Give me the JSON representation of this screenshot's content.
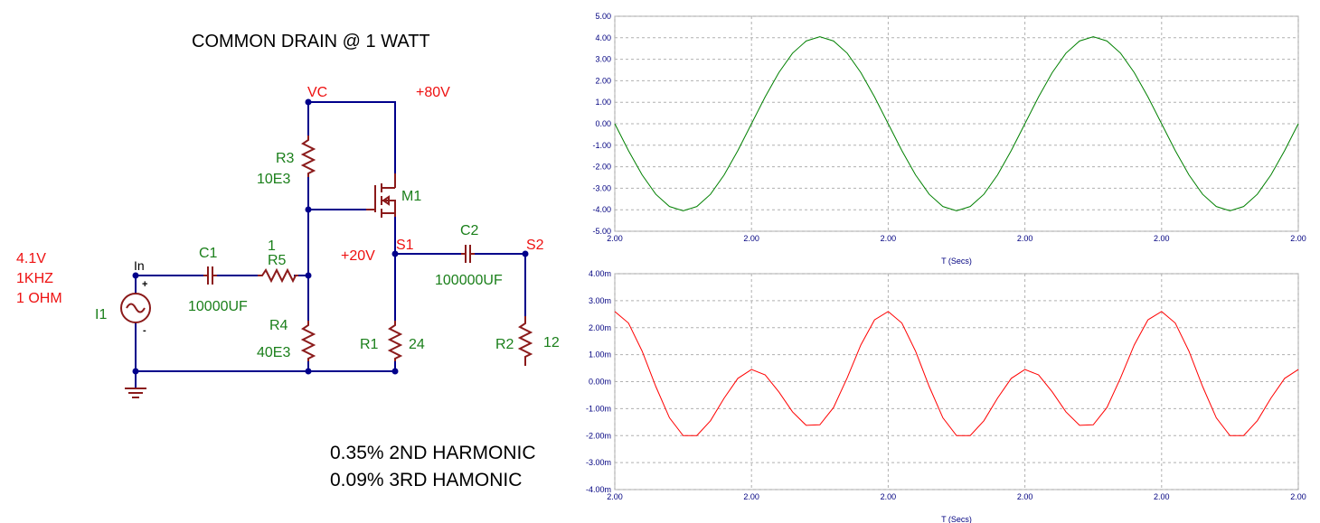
{
  "schematic": {
    "title": "COMMON DRAIN @ 1 WATT",
    "labels": [
      "VC",
      "+80V",
      "R3",
      "10E3",
      "M1",
      "4.1V",
      "1KHZ",
      "1 OHM",
      "In",
      "C1",
      "1",
      "R5",
      "10000UF",
      "I1",
      "R4",
      "40E3",
      "S1",
      "+20V",
      "C2",
      "S2",
      "100000UF",
      "R1",
      "24",
      "R2",
      "12",
      "+",
      "-"
    ],
    "notes": [
      "0.35% 2ND HARMONIC",
      "0.09% 3RD HAMONIC"
    ]
  },
  "chart_data": [
    {
      "type": "line",
      "x_label": "T (Secs)",
      "color": "#008000",
      "grid": true,
      "x": [
        2,
        2.00005,
        2.0001,
        2.00015,
        2.0002,
        2.00025,
        2.0003,
        2.00035,
        2.0004,
        2.00045,
        2.0005,
        2.00055,
        2.0006,
        2.00065,
        2.0007,
        2.00075,
        2.0008,
        2.00085,
        2.0009,
        2.00095,
        2.001,
        2.00105,
        2.0011,
        2.00115,
        2.0012,
        2.00125,
        2.0013,
        2.00135,
        2.0014,
        2.00145,
        2.0015,
        2.00155,
        2.0016,
        2.00165,
        2.0017,
        2.00175,
        2.0018,
        2.00185,
        2.0019,
        2.00195,
        2.002,
        2.00205,
        2.0021,
        2.00215,
        2.0022,
        2.00225,
        2.0023,
        2.00235,
        2.0024,
        2.00245,
        2.0025
      ],
      "values": [
        0,
        -1.25,
        -2.38,
        -3.28,
        -3.85,
        -4.05,
        -3.85,
        -3.28,
        -2.38,
        -1.25,
        0,
        1.25,
        2.38,
        3.28,
        3.85,
        4.05,
        3.85,
        3.28,
        2.38,
        1.25,
        0,
        -1.25,
        -2.38,
        -3.28,
        -3.85,
        -4.05,
        -3.85,
        -3.28,
        -2.38,
        -1.25,
        0,
        1.25,
        2.38,
        3.28,
        3.85,
        4.05,
        3.85,
        3.28,
        2.38,
        1.25,
        0,
        -1.25,
        -2.38,
        -3.28,
        -3.85,
        -4.05,
        -3.85,
        -3.28,
        -2.38,
        -1.25,
        0
      ],
      "xlim": [
        2,
        2.0025
      ],
      "xticks": [
        {
          "value": 2,
          "label": "2.00"
        },
        {
          "value": 2.0005,
          "label": "2.00"
        },
        {
          "value": 2.001,
          "label": "2.00"
        },
        {
          "value": 2.0015,
          "label": "2.00"
        },
        {
          "value": 2.002,
          "label": "2.00"
        },
        {
          "value": 2.0025,
          "label": "2.00"
        }
      ],
      "ylim": [
        -5,
        5
      ],
      "yticks": [
        {
          "value": 5,
          "label": "5.00"
        },
        {
          "value": 4,
          "label": "4.00"
        },
        {
          "value": 3,
          "label": "3.00"
        },
        {
          "value": 2,
          "label": "2.00"
        },
        {
          "value": 1,
          "label": "1.00"
        },
        {
          "value": 0,
          "label": "0.00"
        },
        {
          "value": -1,
          "label": "-1.00"
        },
        {
          "value": -2,
          "label": "-2.00"
        },
        {
          "value": -3,
          "label": "-3.00"
        },
        {
          "value": -4,
          "label": "-4.00"
        },
        {
          "value": -5,
          "label": "-5.00"
        }
      ]
    },
    {
      "type": "line",
      "x_label": "T (Secs)",
      "color": "#ff0000",
      "grid": true,
      "x": [
        2,
        2.00005,
        2.0001,
        2.00015,
        2.0002,
        2.00025,
        2.0003,
        2.00035,
        2.0004,
        2.00045,
        2.0005,
        2.00055,
        2.0006,
        2.00065,
        2.0007,
        2.00075,
        2.0008,
        2.00085,
        2.0009,
        2.00095,
        2.001,
        2.00105,
        2.0011,
        2.00115,
        2.0012,
        2.00125,
        2.0013,
        2.00135,
        2.0014,
        2.00145,
        2.0015,
        2.00155,
        2.0016,
        2.00165,
        2.0017,
        2.00175,
        2.0018,
        2.00185,
        2.0019,
        2.00195,
        2.002,
        2.00205,
        2.0021,
        2.00215,
        2.0022,
        2.00225,
        2.0023,
        2.00235,
        2.0024,
        2.00245,
        2.0025
      ],
      "values": [
        0.0026,
        0.00217,
        0.00113,
        -0.00018,
        -0.00134,
        -0.002,
        -0.002,
        -0.00145,
        -0.00061,
        0.00012,
        0.00045,
        0.00025,
        -0.00038,
        -0.00112,
        -0.00162,
        -0.0016,
        -0.00096,
        0.00014,
        0.00136,
        0.00229,
        0.0026,
        0.00217,
        0.00113,
        -0.00018,
        -0.00134,
        -0.002,
        -0.002,
        -0.00145,
        -0.00061,
        0.00012,
        0.00045,
        0.00025,
        -0.00038,
        -0.00112,
        -0.00162,
        -0.0016,
        -0.00096,
        0.00014,
        0.00136,
        0.00229,
        0.0026,
        0.00217,
        0.00113,
        -0.00018,
        -0.00134,
        -0.002,
        -0.002,
        -0.00145,
        -0.00061,
        0.00012,
        0.00045
      ],
      "xlim": [
        2,
        2.0025
      ],
      "xticks": [
        {
          "value": 2,
          "label": "2.00"
        },
        {
          "value": 2.0005,
          "label": "2.00"
        },
        {
          "value": 2.001,
          "label": "2.00"
        },
        {
          "value": 2.0015,
          "label": "2.00"
        },
        {
          "value": 2.002,
          "label": "2.00"
        },
        {
          "value": 2.0025,
          "label": "2.00"
        }
      ],
      "ylim": [
        -0.004,
        0.004
      ],
      "yticks": [
        {
          "value": 0.004,
          "label": "4.00m"
        },
        {
          "value": 0.003,
          "label": "3.00m"
        },
        {
          "value": 0.002,
          "label": "2.00m"
        },
        {
          "value": 0.001,
          "label": "1.00m"
        },
        {
          "value": 0,
          "label": "0.00m"
        },
        {
          "value": -0.001,
          "label": "-1.00m"
        },
        {
          "value": -0.002,
          "label": "-2.00m"
        },
        {
          "value": -0.003,
          "label": "-3.00m"
        },
        {
          "value": -0.004,
          "label": "-4.00m"
        }
      ]
    }
  ]
}
